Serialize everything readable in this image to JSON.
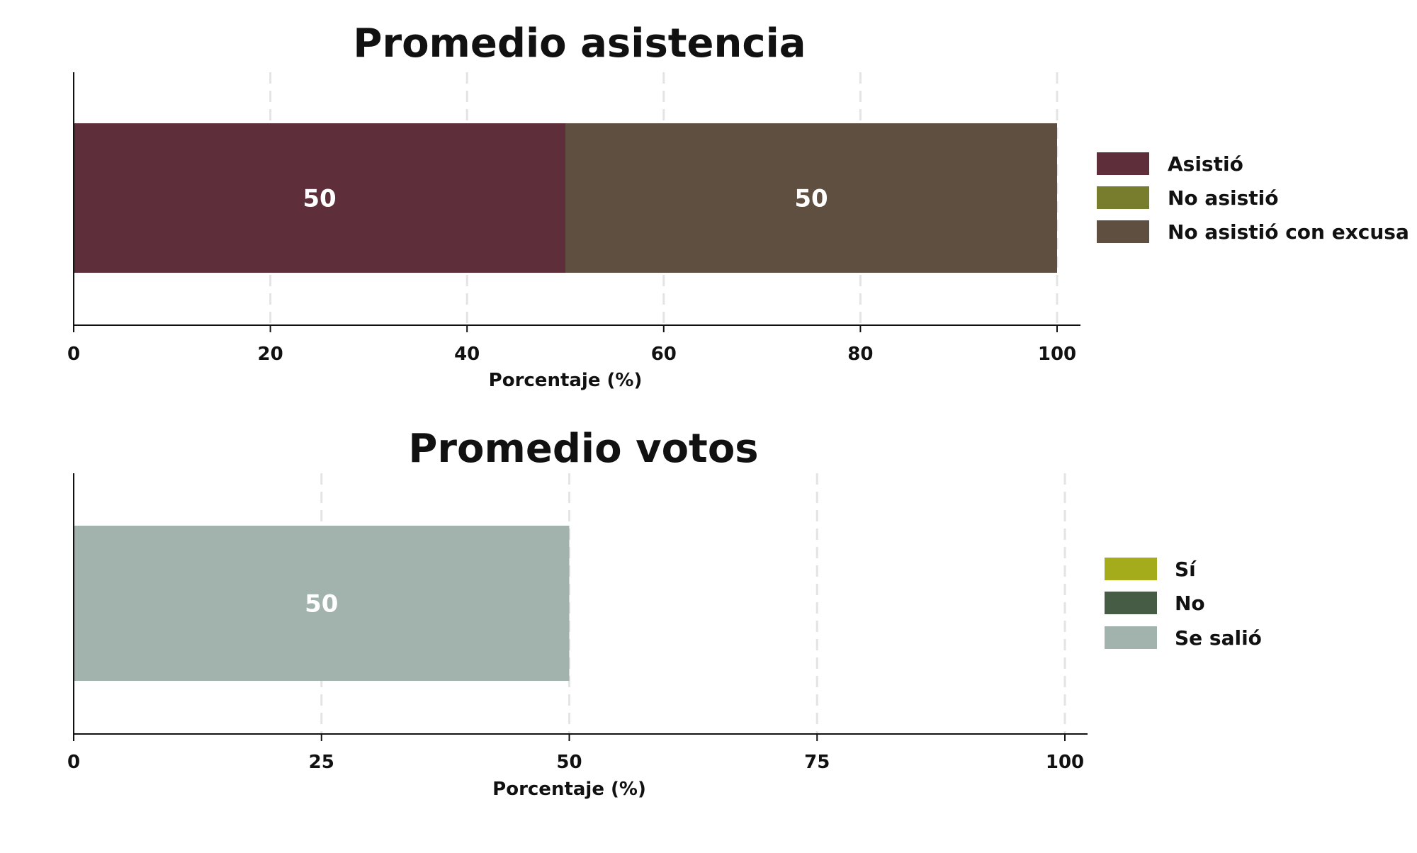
{
  "chart_data": [
    {
      "type": "bar",
      "orientation": "horizontal",
      "stacked": true,
      "title": "Promedio asistencia",
      "xlabel": "Porcentaje (%)",
      "ylabel": "",
      "xlim": [
        0,
        100
      ],
      "xticks": [
        0,
        20,
        40,
        60,
        80,
        100
      ],
      "xtick_labels": [
        "0",
        "20",
        "40",
        "60",
        "80",
        "100"
      ],
      "grid": "vertical dashed",
      "legend_position": "right",
      "categories": [
        ""
      ],
      "series": [
        {
          "name": "Asistió",
          "values": [
            50
          ],
          "color": "#5f2e3b",
          "label": "50"
        },
        {
          "name": "No asistió",
          "values": [
            0
          ],
          "color": "#787d2e",
          "label": ""
        },
        {
          "name": "No asistió con excusa",
          "values": [
            50
          ],
          "color": "#5e4f41",
          "label": "50"
        }
      ]
    },
    {
      "type": "bar",
      "orientation": "horizontal",
      "stacked": true,
      "title": "Promedio votos",
      "xlabel": "Porcentaje (%)",
      "ylabel": "",
      "xlim": [
        0,
        100
      ],
      "xticks": [
        0,
        25,
        50,
        75,
        100
      ],
      "xtick_labels": [
        "0",
        "25",
        "50",
        "75",
        "100"
      ],
      "grid": "vertical dashed",
      "legend_position": "right",
      "categories": [
        ""
      ],
      "series": [
        {
          "name": "Sí",
          "values": [
            0
          ],
          "color": "#a4ac1c",
          "label": ""
        },
        {
          "name": "No",
          "values": [
            0
          ],
          "color": "#475c45",
          "label": ""
        },
        {
          "name": "Se salió",
          "values": [
            50
          ],
          "color": "#a1b3ac",
          "label": "50"
        }
      ]
    }
  ]
}
